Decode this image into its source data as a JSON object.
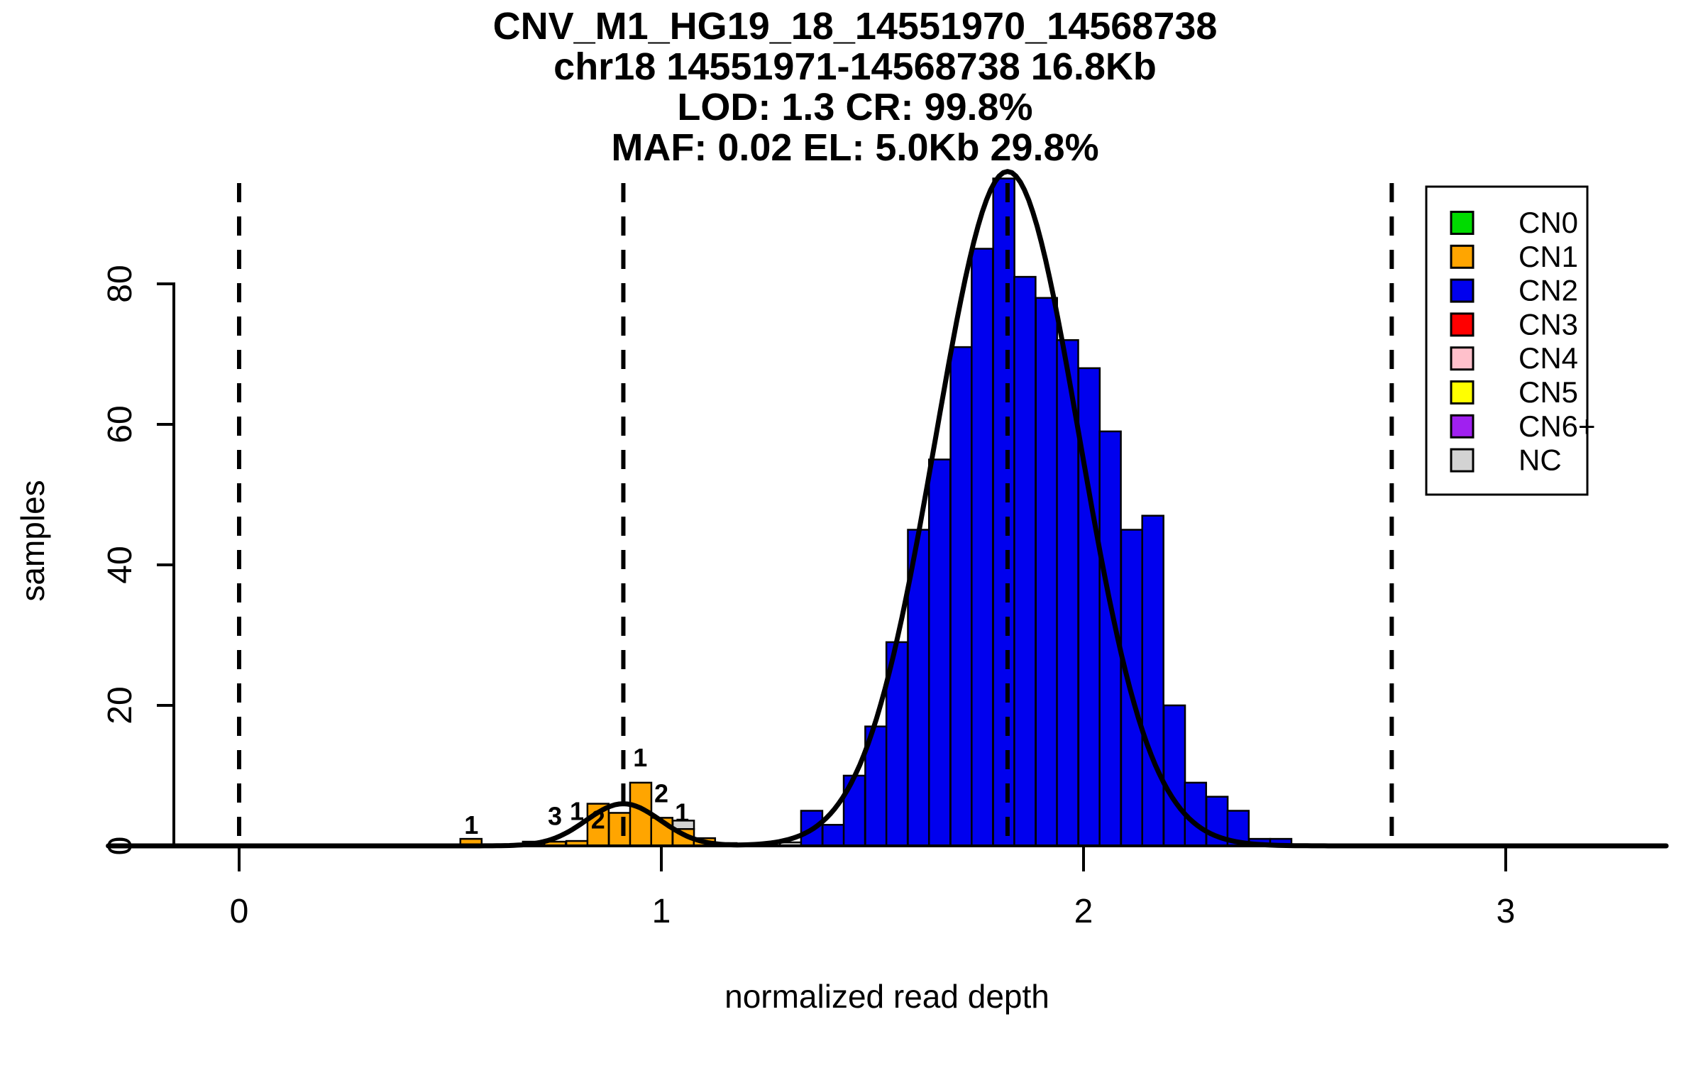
{
  "title": {
    "line1": "CNV_M1_HG19_18_14551970_14568738",
    "line2": "chr18 14551971-14568738 16.8Kb",
    "line3": "LOD: 1.3 CR: 99.8%",
    "line4": "MAF: 0.02 EL: 5.0Kb 29.8%"
  },
  "axes": {
    "xlabel": "normalized read depth",
    "ylabel": "samples",
    "x_ticks": [
      "0",
      "1",
      "2",
      "3"
    ],
    "y_ticks": [
      "0",
      "20",
      "40",
      "60",
      "80"
    ]
  },
  "legend": {
    "items": [
      {
        "label": "CN0",
        "color": "#00DB00"
      },
      {
        "label": "CN1",
        "color": "#FFA500"
      },
      {
        "label": "CN2",
        "color": "#0000EE"
      },
      {
        "label": "CN3",
        "color": "#FF0000"
      },
      {
        "label": "CN4",
        "color": "#FFC0CB"
      },
      {
        "label": "CN5",
        "color": "#FFFF00"
      },
      {
        "label": "CN6+",
        "color": "#A020F0"
      },
      {
        "label": "NC",
        "color": "#D3D3D3"
      }
    ]
  },
  "chart_data": {
    "type": "bar",
    "title": "CNV_M1_HG19_18_14551970_14568738",
    "xlabel": "normalized read depth",
    "ylabel": "samples",
    "xlim": [
      -0.31,
      3.38
    ],
    "ylim": [
      0,
      96
    ],
    "x_tick_values": [
      0,
      1,
      2,
      3
    ],
    "y_tick_values": [
      0,
      20,
      40,
      60,
      80
    ],
    "grid": false,
    "legend_position": "top-right",
    "bin_width": 0.0504,
    "series": [
      {
        "name": "CN1",
        "color": "#FFA500",
        "bins": [
          [
            0.524,
            1.0
          ],
          [
            0.672,
            0.6
          ],
          [
            0.723,
            0.6
          ],
          [
            0.775,
            0.7
          ],
          [
            0.825,
            6.0
          ],
          [
            0.876,
            4.7
          ],
          [
            0.926,
            9.0
          ],
          [
            0.976,
            4.0
          ],
          [
            1.027,
            2.4
          ],
          [
            1.077,
            1.1
          ]
        ]
      },
      {
        "name": "NC",
        "color": "#D3D3D3",
        "bins": [
          [
            1.027,
            1.2,
            2.4
          ],
          [
            1.128,
            0.4
          ],
          [
            1.281,
            0.5
          ]
        ]
      },
      {
        "name": "CN2",
        "color": "#0000EE",
        "bins": [
          [
            1.331,
            5
          ],
          [
            1.382,
            3
          ],
          [
            1.432,
            10
          ],
          [
            1.483,
            17
          ],
          [
            1.533,
            29
          ],
          [
            1.584,
            45
          ],
          [
            1.634,
            55
          ],
          [
            1.685,
            71
          ],
          [
            1.735,
            85
          ],
          [
            1.786,
            95
          ],
          [
            1.836,
            81
          ],
          [
            1.887,
            78
          ],
          [
            1.937,
            72
          ],
          [
            1.988,
            68
          ],
          [
            2.038,
            59
          ],
          [
            2.089,
            45
          ],
          [
            2.139,
            47
          ],
          [
            2.19,
            20
          ],
          [
            2.24,
            9
          ],
          [
            2.291,
            7
          ],
          [
            2.341,
            5
          ],
          [
            2.392,
            1
          ],
          [
            2.442,
            1
          ]
        ]
      }
    ],
    "bar_labels": [
      {
        "text": "1",
        "x": 0.55,
        "y": 1.7
      },
      {
        "text": "3",
        "x": 0.748,
        "y": 3.0
      },
      {
        "text": "1",
        "x": 0.8,
        "y": 3.7
      },
      {
        "text": "2",
        "x": 0.85,
        "y": 2.5
      },
      {
        "text": "1",
        "x": 0.95,
        "y": 11.3
      },
      {
        "text": "2",
        "x": 1.0,
        "y": 6.2
      },
      {
        "text": "1",
        "x": 1.049,
        "y": 3.5
      }
    ],
    "dashed_lines_x": [
      0.0,
      0.91,
      1.82,
      2.73
    ],
    "curve": {
      "components": [
        {
          "mean": 0.91,
          "sd": 0.088,
          "height": 6
        },
        {
          "mean": 1.82,
          "sd": 0.17,
          "height": 96
        }
      ]
    }
  }
}
